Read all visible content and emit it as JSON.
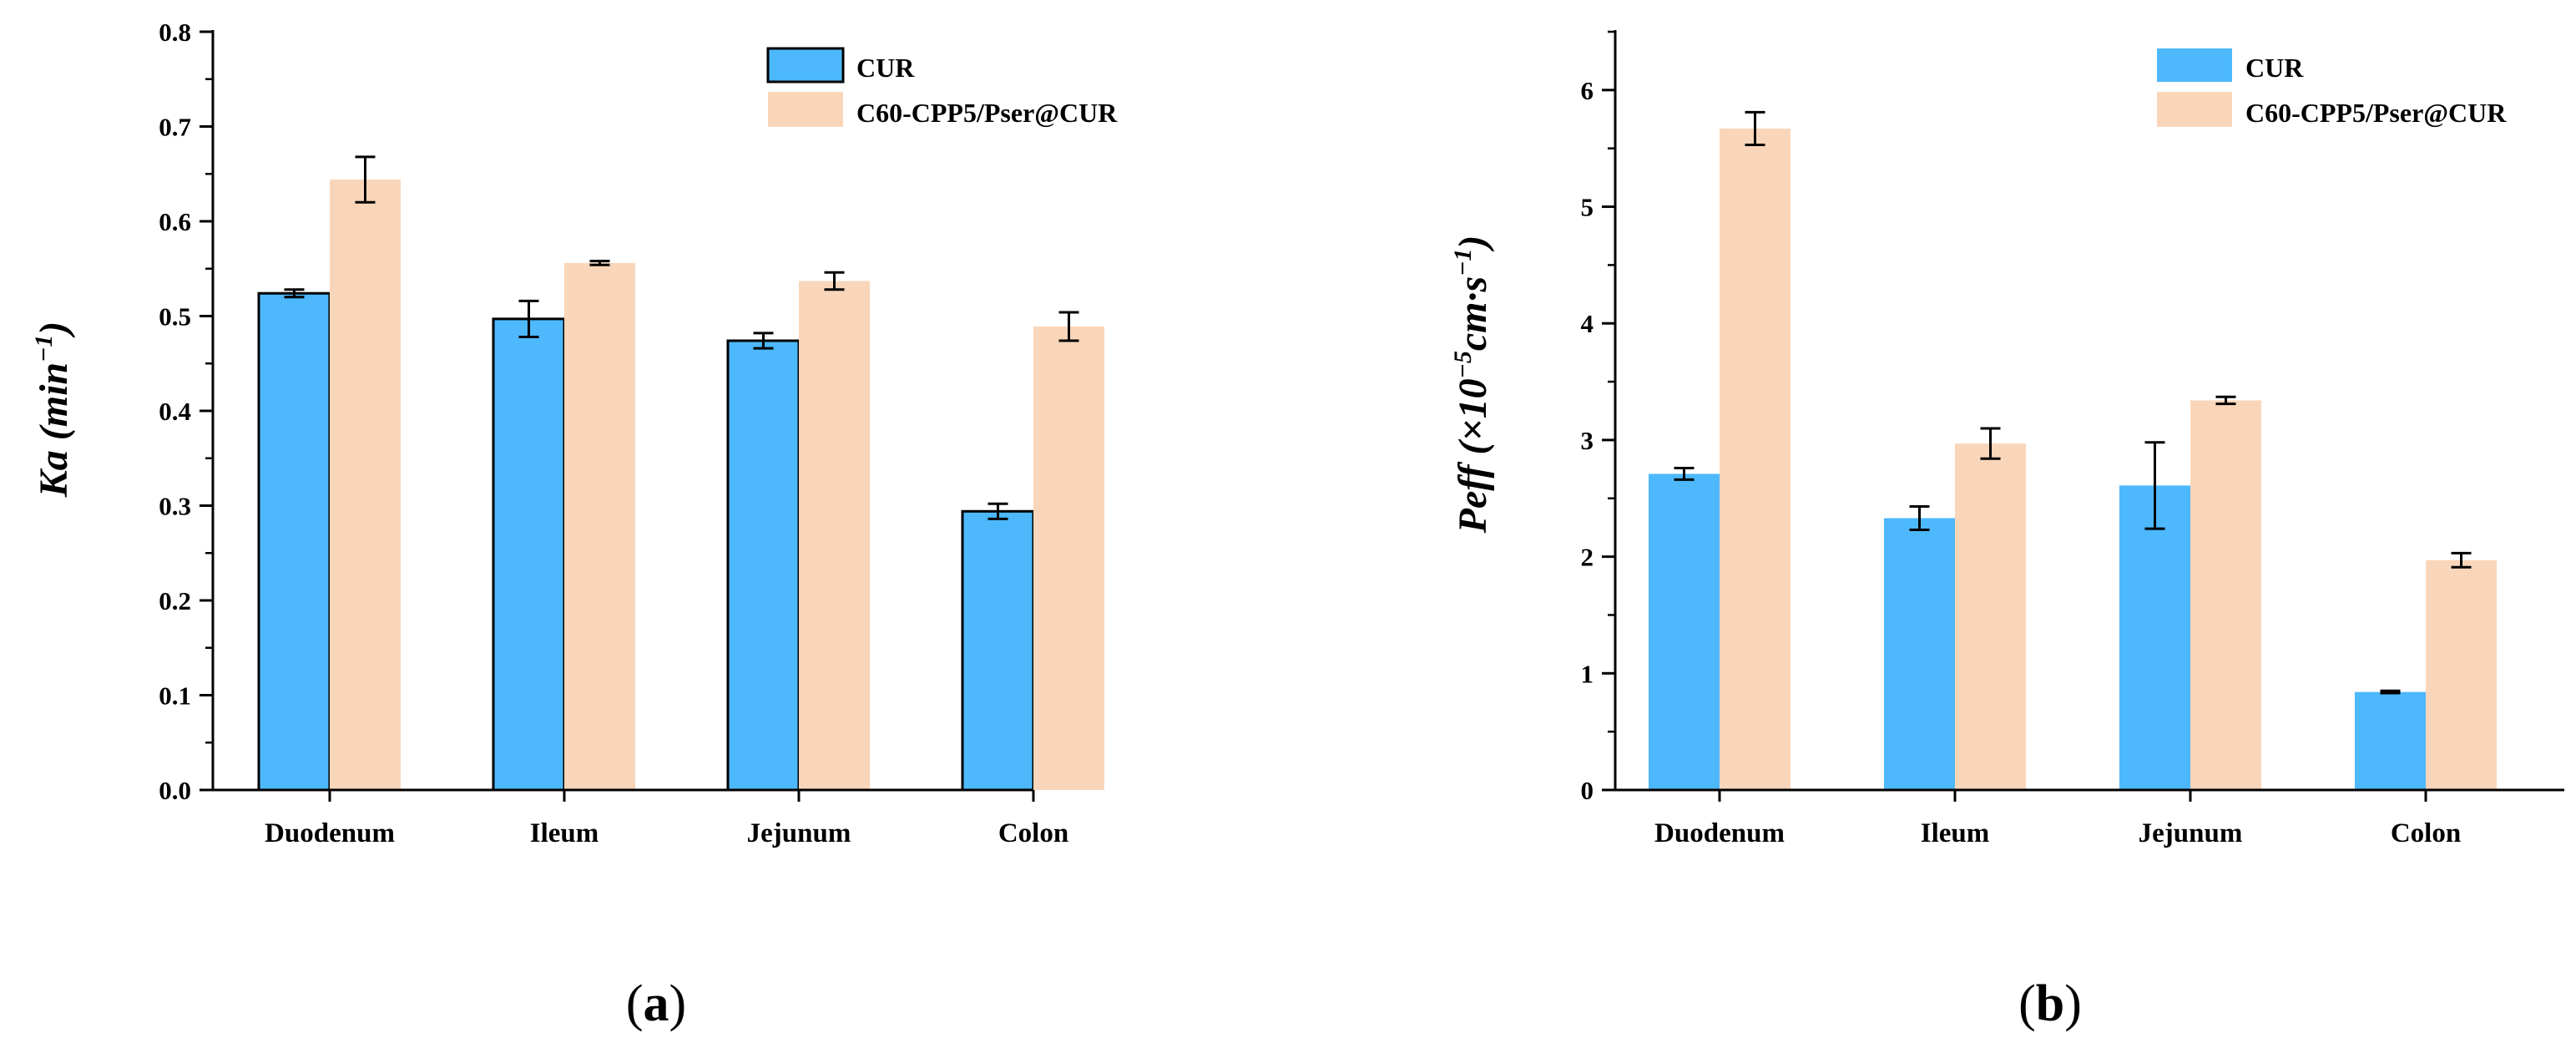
{
  "chart_data": [
    {
      "type": "bar",
      "panel": "a",
      "caption": {
        "open": "(",
        "letter": "a",
        "close": ")"
      },
      "ylabel_parts": [
        "Ka (min",
        "−1",
        ")"
      ],
      "categories": [
        "Duodenum",
        "Ileum",
        "Jejunum",
        "Colon"
      ],
      "ylim": [
        0,
        0.8
      ],
      "yticks": [
        0.0,
        0.1,
        0.2,
        0.3,
        0.4,
        0.5,
        0.6,
        0.7,
        0.8
      ],
      "ytick_labels": [
        "0.0",
        "0.1",
        "0.2",
        "0.3",
        "0.4",
        "0.5",
        "0.6",
        "0.7",
        "0.8"
      ],
      "legend_position": "top-right",
      "series": [
        {
          "name": "CUR",
          "color": "#4db8fb",
          "outlined": true,
          "values": [
            0.524,
            0.497,
            0.474,
            0.294
          ],
          "errors": [
            0.004,
            0.019,
            0.008,
            0.008
          ]
        },
        {
          "name": "C60-CPP5/Pser@CUR",
          "color": "#f9d6ba",
          "outlined": false,
          "values": [
            0.644,
            0.556,
            0.537,
            0.489
          ],
          "errors": [
            0.024,
            0.002,
            0.009,
            0.015
          ]
        }
      ]
    },
    {
      "type": "bar",
      "panel": "b",
      "caption": {
        "open": "(",
        "letter": "b",
        "close": ")"
      },
      "ylabel_parts": [
        "Peff (×10",
        "−5",
        "cm·s",
        "−1",
        ")"
      ],
      "categories": [
        "Duodenum",
        "Ileum",
        "Jejunum",
        "Colon"
      ],
      "ylim": [
        0,
        6.5
      ],
      "yticks": [
        0,
        1,
        2,
        3,
        4,
        5,
        6
      ],
      "ytick_labels": [
        "0",
        "1",
        "2",
        "3",
        "4",
        "5",
        "6"
      ],
      "legend_position": "top-right",
      "series": [
        {
          "name": "CUR",
          "color": "#4db8fb",
          "outlined": false,
          "values": [
            2.71,
            2.33,
            2.61,
            0.84
          ],
          "errors": [
            0.05,
            0.1,
            0.37,
            0.01
          ]
        },
        {
          "name": "C60-CPP5/Pser@CUR",
          "color": "#f9d6ba",
          "outlined": false,
          "values": [
            5.67,
            2.97,
            3.34,
            1.97
          ],
          "errors": [
            0.14,
            0.13,
            0.03,
            0.06
          ]
        }
      ]
    }
  ]
}
